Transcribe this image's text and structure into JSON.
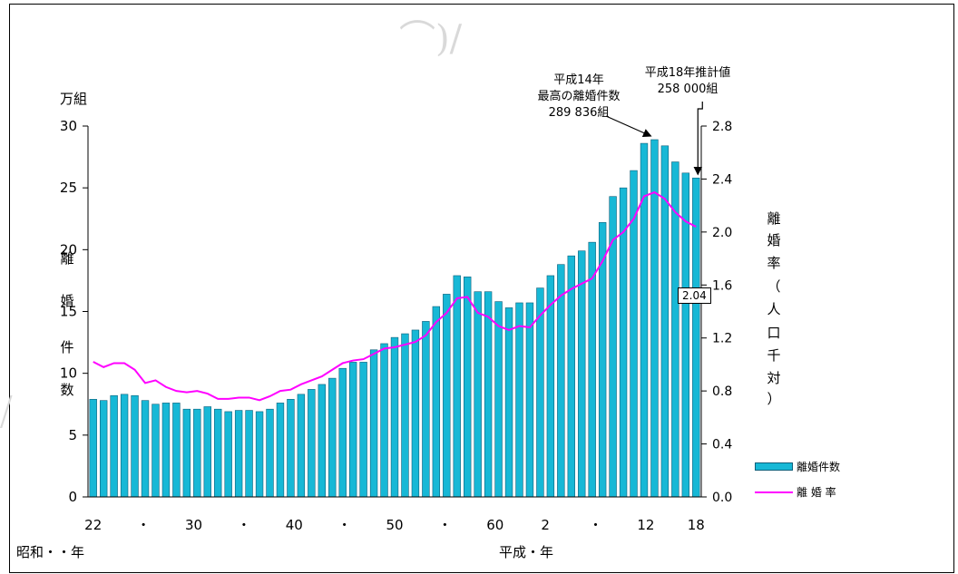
{
  "chart_data": {
    "type": "bar",
    "colors": {
      "bar": "#17b8d6",
      "bar_edge": "#0f5f7a",
      "line": "#ff00ff"
    },
    "x_tick_labels": [
      "22",
      "・",
      "30",
      "・",
      "40",
      "・",
      "50",
      "・",
      "60",
      "2",
      "・",
      "12",
      "18"
    ],
    "era_labels": {
      "showa": "昭和・・年",
      "heisei": "平成・年"
    },
    "left_axis": {
      "unit": "万組",
      "label_chars": [
        "離",
        "婚",
        "件",
        "数"
      ],
      "ticks": [
        "0",
        "5",
        "10",
        "15",
        "20",
        "25",
        "30"
      ],
      "range": [
        0,
        30
      ]
    },
    "right_axis": {
      "label_chars": [
        "離",
        "婚",
        "率",
        "（",
        "人",
        "口",
        "千",
        "対",
        "）"
      ],
      "ticks": [
        "0.0",
        "0.4",
        "0.8",
        "1.2",
        "1.6",
        "2.0",
        "2.4",
        "2.8"
      ],
      "range": [
        0,
        2.8
      ]
    },
    "series": [
      {
        "name": "離婚件数",
        "axis": "left",
        "values": [
          7.9,
          7.8,
          8.2,
          8.3,
          8.2,
          7.8,
          7.5,
          7.6,
          7.6,
          7.1,
          7.1,
          7.3,
          7.1,
          6.9,
          7.0,
          7.0,
          6.9,
          7.1,
          7.6,
          7.9,
          8.3,
          8.7,
          9.1,
          9.6,
          10.4,
          10.9,
          10.9,
          11.9,
          12.4,
          12.9,
          13.2,
          13.5,
          14.2,
          15.4,
          16.4,
          17.9,
          17.8,
          16.6,
          16.6,
          15.8,
          15.3,
          15.7,
          15.7,
          16.9,
          17.9,
          18.8,
          19.5,
          19.9,
          20.6,
          22.2,
          24.3,
          25.0,
          26.4,
          28.6,
          28.9,
          28.4,
          27.1,
          26.2,
          25.8
        ],
        "legend_label": "離婚件数"
      },
      {
        "name": "離 婚 率",
        "axis": "right",
        "values": [
          1.02,
          0.98,
          1.01,
          1.01,
          0.96,
          0.86,
          0.88,
          0.83,
          0.8,
          0.79,
          0.8,
          0.78,
          0.74,
          0.74,
          0.75,
          0.75,
          0.73,
          0.76,
          0.8,
          0.81,
          0.85,
          0.88,
          0.91,
          0.96,
          1.01,
          1.03,
          1.04,
          1.08,
          1.12,
          1.13,
          1.15,
          1.17,
          1.22,
          1.32,
          1.39,
          1.5,
          1.51,
          1.39,
          1.36,
          1.29,
          1.26,
          1.29,
          1.28,
          1.37,
          1.45,
          1.52,
          1.57,
          1.61,
          1.65,
          1.78,
          1.94,
          2.0,
          2.1,
          2.27,
          2.3,
          2.25,
          2.15,
          2.08,
          2.04
        ],
        "legend_label": "離 婚 率"
      }
    ],
    "annotations": {
      "peak_lines": [
        "平成14年",
        "最高の離婚件数",
        "289 836組"
      ],
      "estimate_lines": [
        "平成18年推計値",
        "258 000組"
      ],
      "last_rate": "2.04"
    }
  }
}
